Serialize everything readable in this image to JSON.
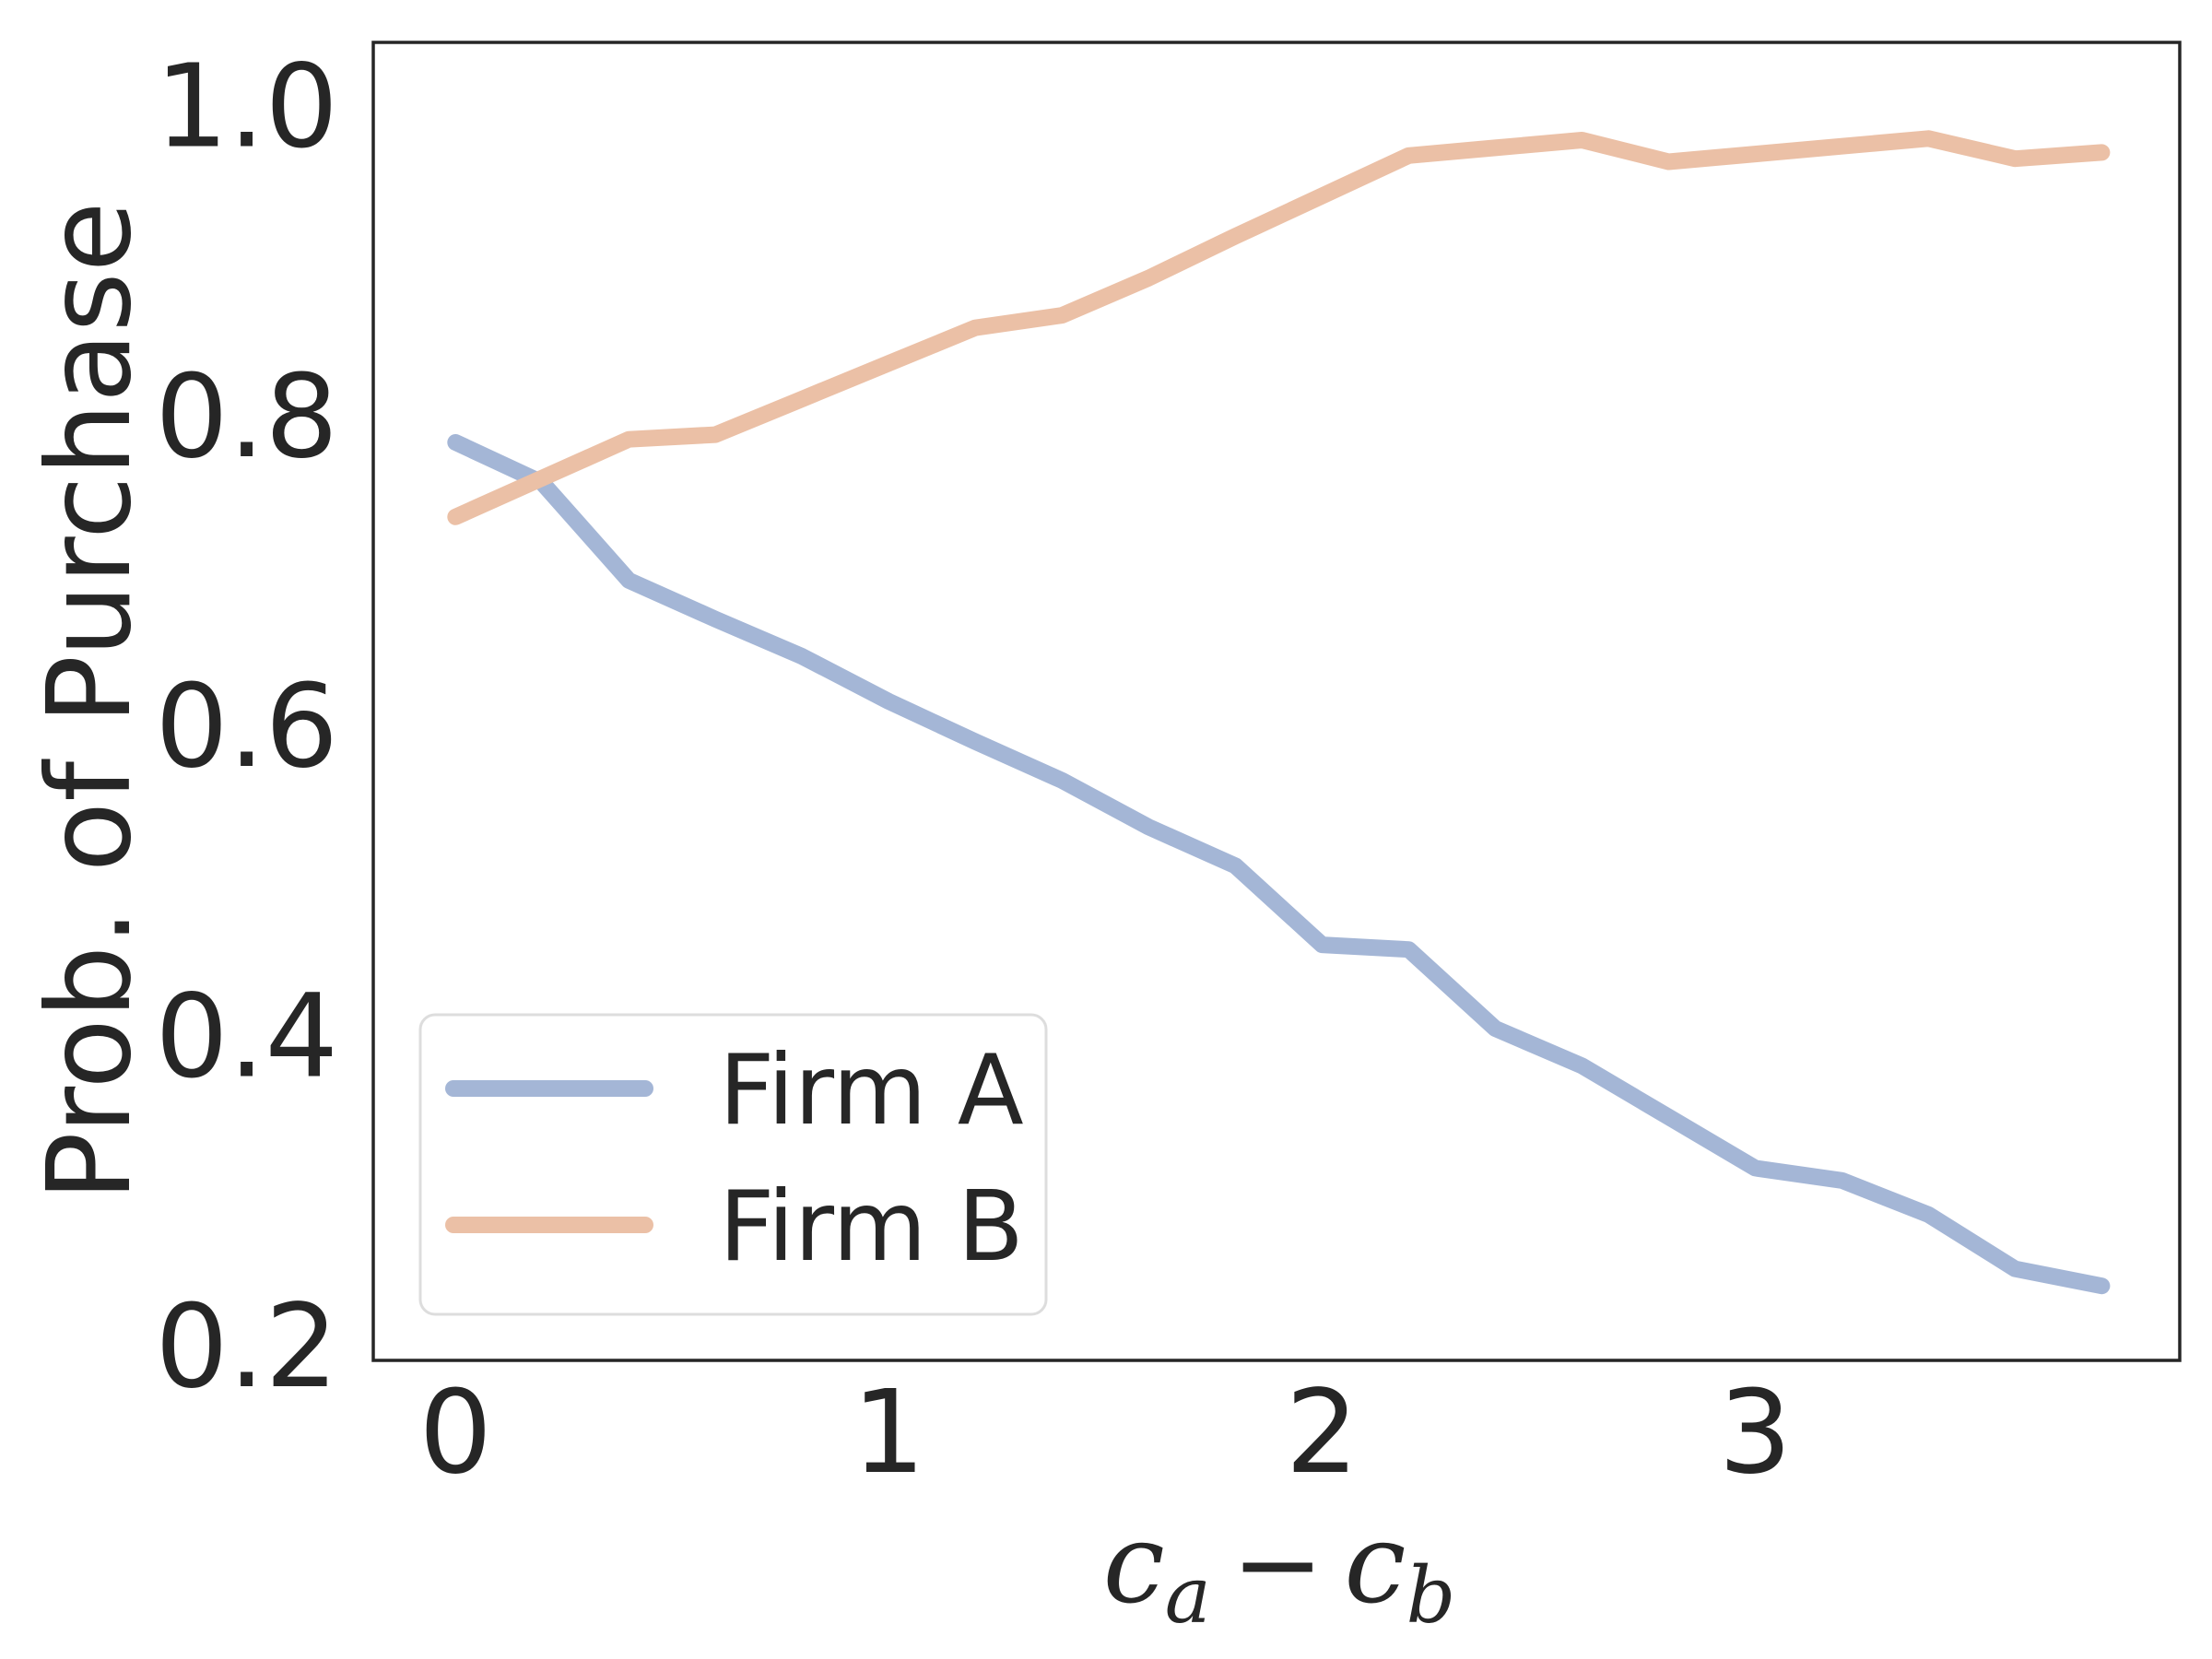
{
  "chart_data": {
    "type": "line",
    "xlabel": "c_a − c_b",
    "xlabel_parts": {
      "c1": "c",
      "sub1": "a",
      "minus": "−",
      "c2": "c",
      "sub2": "b"
    },
    "ylabel": "Prob. of Purchase",
    "xlim": [
      -0.19,
      3.98
    ],
    "ylim": [
      0.19,
      1.04
    ],
    "xticks": [
      0,
      1,
      2,
      3
    ],
    "xtick_labels": [
      "0",
      "1",
      "2",
      "3"
    ],
    "yticks": [
      0.2,
      0.4,
      0.6,
      0.8,
      1.0
    ],
    "ytick_labels": [
      "0.2",
      "0.4",
      "0.6",
      "0.8",
      "1.0"
    ],
    "grid": false,
    "legend_position": "lower-left",
    "x": [
      0.0,
      0.2,
      0.4,
      0.6,
      0.8,
      1.0,
      1.2,
      1.4,
      1.6,
      1.8,
      2.0,
      2.2,
      2.4,
      2.6,
      2.8,
      3.0,
      3.2,
      3.4,
      3.6,
      3.8
    ],
    "series": [
      {
        "name": "Firm A",
        "color": "#a4b6d6",
        "values": [
          0.782,
          0.756,
          0.693,
          0.668,
          0.644,
          0.615,
          0.589,
          0.564,
          0.534,
          0.509,
          0.458,
          0.455,
          0.404,
          0.38,
          0.347,
          0.314,
          0.306,
          0.284,
          0.249,
          0.238
        ]
      },
      {
        "name": "Firm B",
        "color": "#ebc0a6",
        "values": [
          0.734,
          0.759,
          0.784,
          0.787,
          0.81,
          0.833,
          0.856,
          0.864,
          0.888,
          0.915,
          0.941,
          0.967,
          0.972,
          0.977,
          0.963,
          0.968,
          0.973,
          0.978,
          0.965,
          0.969
        ]
      }
    ]
  }
}
